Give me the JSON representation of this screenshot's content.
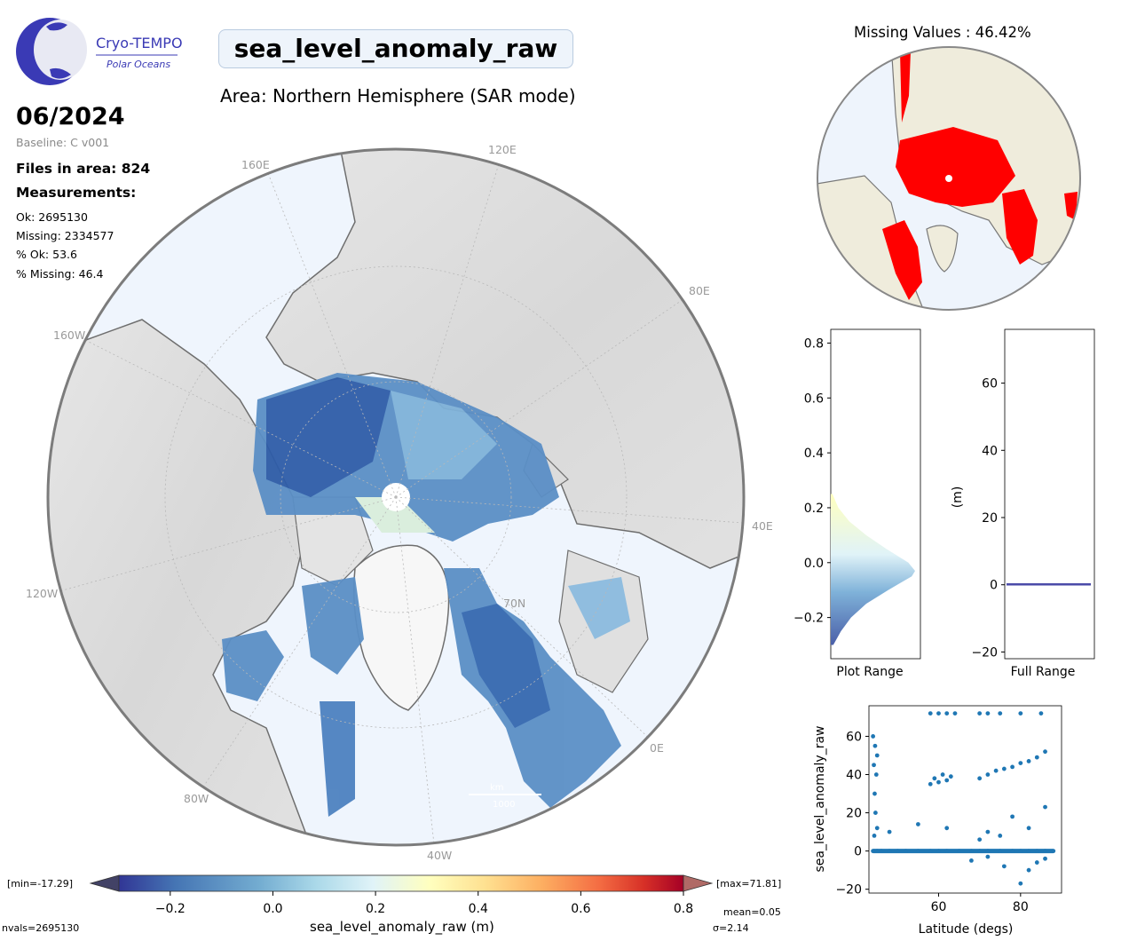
{
  "logo": {
    "name": "Cryo-TEMPO",
    "tagline": "Polar Oceans"
  },
  "header": {
    "title": "sea_level_anomaly_raw",
    "area": "Area: Northern Hemisphere (SAR mode)"
  },
  "info": {
    "date": "06/2024",
    "baseline": "Baseline: C v001",
    "files": "Files in area: 824",
    "measurements_title": "Measurements:",
    "ok": "Ok: 2695130",
    "missing": "Missing: 2334577",
    "pct_ok": "% Ok: 53.6",
    "pct_missing": "% Missing: 46.4"
  },
  "map": {
    "lon_labels": [
      "160E",
      "120E",
      "80E",
      "40E",
      "0E",
      "40W",
      "80W",
      "120W",
      "160W"
    ],
    "lat_label": "70N",
    "scale_label": "1000",
    "scale_unit": "km"
  },
  "colorbar": {
    "min_label": "[min=-17.29]",
    "max_label": "[max=71.81]",
    "ticks": [
      "−0.2",
      "0.0",
      "0.2",
      "0.4",
      "0.6",
      "0.8"
    ],
    "label": "sea_level_anomaly_raw (m)",
    "nvals": "nvals=2695130",
    "mean": "mean=0.05",
    "sigma": "σ=2.14",
    "colors": [
      "#313695",
      "#4575b4",
      "#74add1",
      "#abd9e9",
      "#e0f3f8",
      "#ffffbf",
      "#fee090",
      "#fdae61",
      "#f46d43",
      "#d73027",
      "#a50026"
    ]
  },
  "missing_map": {
    "title": "Missing Values : 46.42%",
    "missing_color": "#ff0000",
    "land_color": "#efecdc",
    "ocean_color": "#eef4fc"
  },
  "chart_data": [
    {
      "type": "area",
      "title": "",
      "xlabel": "Plot Range",
      "ylabel": "",
      "ylim": [
        -0.35,
        0.85
      ],
      "yticks": [
        "−0.2",
        "0.0",
        "0.2",
        "0.4",
        "0.6",
        "0.8"
      ],
      "x": [
        -0.3,
        -0.25,
        -0.2,
        -0.15,
        -0.1,
        -0.05,
        -0.03,
        0.0,
        0.05,
        0.1,
        0.15,
        0.2,
        0.25
      ],
      "values": [
        0.03,
        0.12,
        0.24,
        0.42,
        0.68,
        0.96,
        1.0,
        0.92,
        0.66,
        0.42,
        0.22,
        0.09,
        0.02
      ]
    },
    {
      "type": "bar",
      "title": "",
      "xlabel": "Full Range",
      "ylabel": "(m)",
      "ylim": [
        -22,
        76
      ],
      "yticks": [
        "−20",
        "0",
        "20",
        "40",
        "60"
      ],
      "values": [
        0.05
      ]
    },
    {
      "type": "scatter",
      "title": "",
      "xlabel": "Latitude (degs)",
      "ylabel": "sea_level_anomaly_raw",
      "xlim": [
        43,
        90
      ],
      "ylim": [
        -22,
        76
      ],
      "xticks": [
        "60",
        "80"
      ],
      "yticks": [
        "−20",
        "0",
        "20",
        "40",
        "60"
      ],
      "series": [
        {
          "x": [
            44,
            45,
            46,
            48,
            50,
            52,
            55,
            58,
            60,
            62,
            65,
            68,
            70,
            72,
            75,
            78,
            80,
            82,
            84,
            86,
            88
          ],
          "y": [
            0,
            0,
            0,
            0,
            0,
            0,
            0,
            0,
            0,
            0,
            0,
            0,
            0,
            0,
            0,
            0,
            0,
            0,
            0,
            0,
            0
          ]
        },
        {
          "x": [
            44,
            44.5,
            45,
            44.2,
            44.8,
            44.4,
            44.6,
            45,
            44.3
          ],
          "y": [
            60,
            55,
            50,
            45,
            40,
            30,
            20,
            12,
            8
          ]
        },
        {
          "x": [
            58,
            59,
            60,
            61,
            62,
            63
          ],
          "y": [
            35,
            38,
            36,
            40,
            37,
            39
          ]
        },
        {
          "x": [
            70,
            72,
            74,
            76,
            78,
            80,
            82,
            84,
            86
          ],
          "y": [
            38,
            40,
            42,
            43,
            44,
            46,
            47,
            49,
            52
          ]
        },
        {
          "x": [
            58,
            60,
            62,
            64,
            70,
            72,
            75,
            80,
            85
          ],
          "y": [
            72,
            72,
            72,
            72,
            72,
            72,
            72,
            72,
            72
          ]
        },
        {
          "x": [
            48,
            55,
            62,
            70,
            72,
            75,
            78,
            82,
            86
          ],
          "y": [
            10,
            14,
            12,
            6,
            10,
            8,
            18,
            12,
            23
          ]
        },
        {
          "x": [
            68,
            72,
            76,
            80,
            82,
            84,
            86
          ],
          "y": [
            -5,
            -3,
            -8,
            -17,
            -10,
            -6,
            -4
          ]
        }
      ]
    }
  ]
}
